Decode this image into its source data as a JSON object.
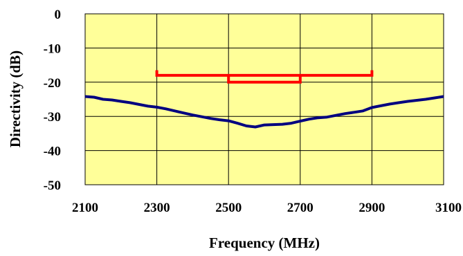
{
  "chart_data": {
    "type": "line",
    "title": "",
    "xlabel": "Frequency (MHz)",
    "ylabel": "Directivity (dB)",
    "xlim": [
      2100,
      3100
    ],
    "ylim": [
      -50,
      0
    ],
    "xticks": [
      2100,
      2300,
      2500,
      2700,
      2900,
      3100
    ],
    "yticks": [
      0,
      -10,
      -20,
      -30,
      -40,
      -50
    ],
    "grid": true,
    "legend": "none",
    "colors": {
      "plot_background": "#ffff99",
      "grid": "#000000",
      "series": "#000080",
      "spec": "#ff0000"
    },
    "series": [
      {
        "x": [
          2100,
          2125,
          2150,
          2175,
          2200,
          2225,
          2250,
          2275,
          2300,
          2325,
          2350,
          2375,
          2400,
          2425,
          2450,
          2475,
          2500,
          2525,
          2550,
          2575,
          2600,
          2625,
          2650,
          2675,
          2700,
          2725,
          2750,
          2775,
          2800,
          2825,
          2850,
          2875,
          2900,
          2925,
          2950,
          2975,
          3000,
          3025,
          3050,
          3075,
          3100
        ],
        "y": [
          -24.2,
          -24.4,
          -25.0,
          -25.2,
          -25.6,
          -26.0,
          -26.5,
          -27.0,
          -27.3,
          -27.8,
          -28.4,
          -29.0,
          -29.6,
          -30.1,
          -30.6,
          -31.0,
          -31.3,
          -32.0,
          -32.8,
          -33.1,
          -32.5,
          -32.4,
          -32.3,
          -32.0,
          -31.4,
          -30.8,
          -30.4,
          -30.2,
          -29.7,
          -29.2,
          -28.8,
          -28.4,
          -27.4,
          -26.9,
          -26.4,
          -26.0,
          -25.6,
          -25.3,
          -25.0,
          -24.6,
          -24.2
        ]
      }
    ],
    "spec_lines": [
      {
        "x": [
          2300,
          2900
        ],
        "y": -18.0,
        "end_ticks_to": -16.5
      },
      {
        "x": [
          2500,
          2700
        ],
        "y": -20.0,
        "end_ticks_to": -18.0
      }
    ]
  }
}
